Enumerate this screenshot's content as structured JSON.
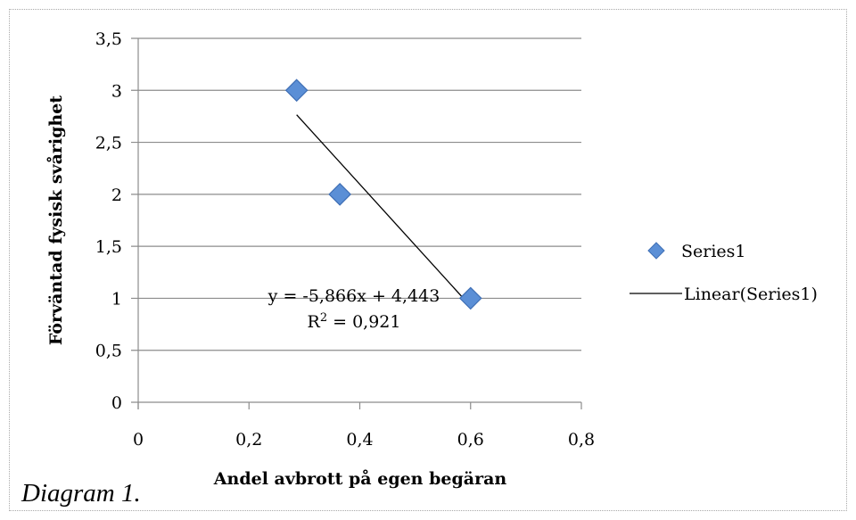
{
  "caption": "Diagram 1.",
  "chart_data": {
    "type": "scatter",
    "title": "",
    "xlabel": "Andel avbrott på egen begäran",
    "ylabel": "Förväntad fysisk svårighet",
    "xlim": [
      0,
      0.8
    ],
    "ylim": [
      0,
      3.5
    ],
    "x_ticks": [
      0,
      0.2,
      0.4,
      0.6,
      0.8
    ],
    "x_tick_labels": [
      "0",
      "0,2",
      "0,4",
      "0,6",
      "0,8"
    ],
    "y_ticks": [
      0,
      0.5,
      1,
      1.5,
      2,
      2.5,
      3,
      3.5
    ],
    "y_tick_labels": [
      "0",
      "0,5",
      "1",
      "1,5",
      "2",
      "2,5",
      "3",
      "3,5"
    ],
    "grid": "horizontal",
    "series": [
      {
        "name": "Series1",
        "color": "#5b8fd6",
        "marker": "diamond",
        "points": [
          {
            "x": 0.286,
            "y": 3
          },
          {
            "x": 0.364,
            "y": 2
          },
          {
            "x": 0.6,
            "y": 1
          }
        ]
      }
    ],
    "trendline": {
      "name": "Linear(Series1)",
      "type": "linear",
      "slope": -5.866,
      "intercept": 4.443,
      "x_range": [
        0.286,
        0.6
      ],
      "equation_label": "y = -5,866x + 4,443",
      "r2_label_prefix": "R",
      "r2_label_sup": "2",
      "r2_label_value": " = 0,921"
    },
    "legend_position": "right"
  }
}
